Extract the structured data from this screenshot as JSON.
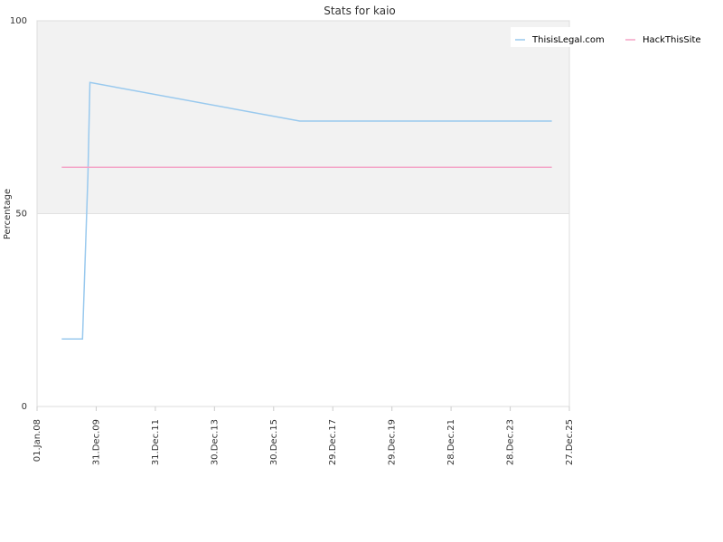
{
  "chart_data": {
    "type": "line",
    "title": "Stats for kaio",
    "xlabel": "",
    "ylabel": "Percentage",
    "ylim": [
      0,
      100
    ],
    "y_ticks": [
      "0",
      "50",
      "100"
    ],
    "x_ticks": [
      "01.Jan.08",
      "31.Dec.09",
      "31.Dec.11",
      "30.Dec.13",
      "30.Dec.15",
      "29.Dec.17",
      "29.Dec.19",
      "28.Dec.21",
      "28.Dec.23",
      "27.Dec.25"
    ],
    "xlim": [
      "2008-01-01",
      "2025-12-27"
    ],
    "grid": false,
    "shaded_band": [
      50,
      100
    ],
    "legend_position": "top-right",
    "series": [
      {
        "name": "ThisisLegal.com",
        "color": "#99c9ee",
        "points": [
          [
            "2008-11-01",
            17.5
          ],
          [
            "2009-07-15",
            17.5
          ],
          [
            "2009-09-20",
            60.0
          ],
          [
            "2009-10-15",
            84.0
          ],
          [
            "2016-11-15",
            74.0
          ],
          [
            "2025-05-25",
            74.0
          ]
        ]
      },
      {
        "name": "HackThisSite",
        "color": "#f4a3c6",
        "points": [
          [
            "2008-11-01",
            62.0
          ],
          [
            "2025-05-25",
            62.0
          ]
        ]
      }
    ]
  }
}
